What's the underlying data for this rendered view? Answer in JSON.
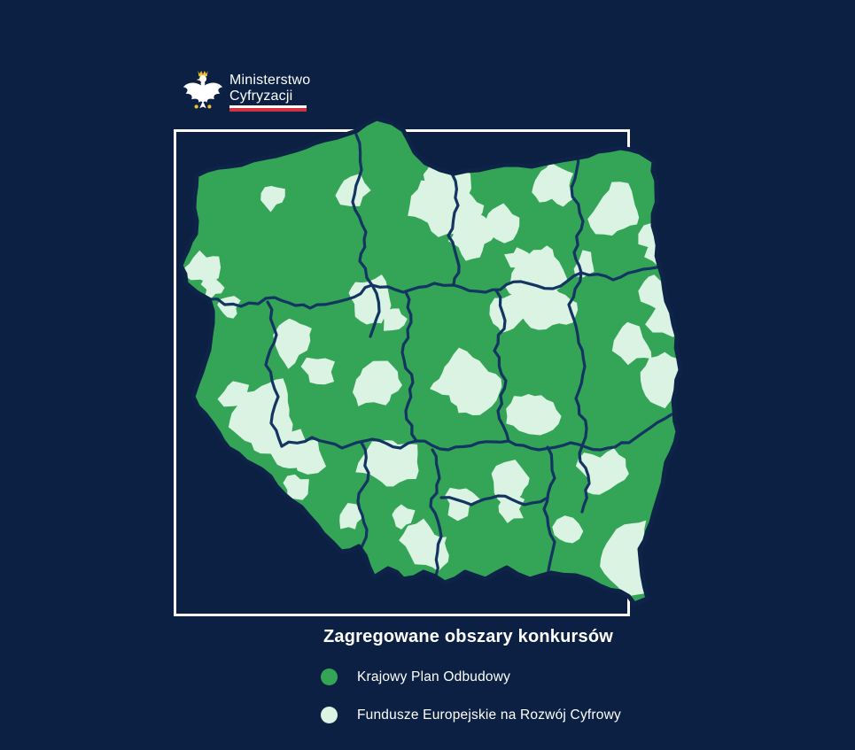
{
  "logo": {
    "line1": "Ministerstwo",
    "line2": "Cyfryzacji"
  },
  "legend": {
    "title": "Zagregowane obszary konkursów",
    "items": [
      {
        "label": "Krajowy Plan Odbudowy",
        "color": "#34a456"
      },
      {
        "label": "Fundusze Europejskie na Rozwój Cyfrowy",
        "color": "#daf3e3"
      }
    ]
  },
  "colors": {
    "background": "#0b2043",
    "frame": "#ffffff",
    "map_green": "#34a456",
    "map_mint": "#daf3e3",
    "voivodeship_border": "#123561",
    "country_outline": "#0d2347",
    "flag_white": "#ffffff",
    "flag_red": "#d2313f",
    "eagle_white": "#ffffff",
    "eagle_gold": "#f2c230"
  }
}
